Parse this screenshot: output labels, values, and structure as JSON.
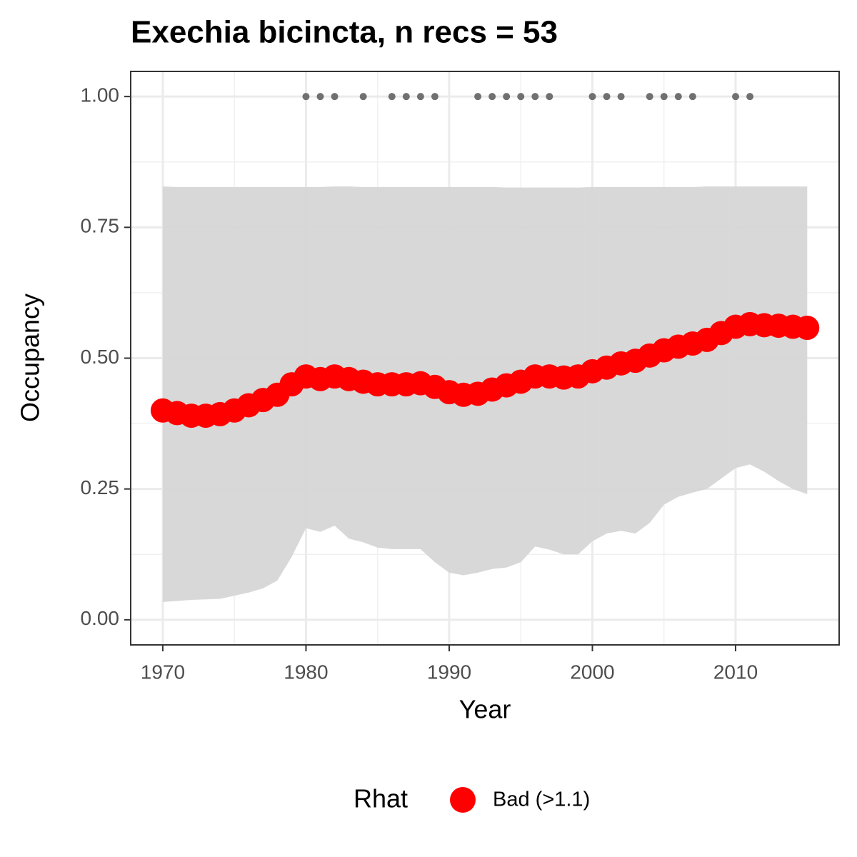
{
  "chart_data": {
    "type": "line",
    "title": "Exechia bicincta, n recs = 53",
    "x_label": "Year",
    "y_label": "Occupancy",
    "x": [
      1970,
      1971,
      1972,
      1973,
      1974,
      1975,
      1976,
      1977,
      1978,
      1979,
      1980,
      1981,
      1982,
      1983,
      1984,
      1985,
      1986,
      1987,
      1988,
      1989,
      1990,
      1991,
      1992,
      1993,
      1994,
      1995,
      1996,
      1997,
      1998,
      1999,
      2000,
      2001,
      2002,
      2003,
      2004,
      2005,
      2006,
      2007,
      2008,
      2009,
      2010,
      2011,
      2012,
      2013,
      2014,
      2015
    ],
    "series": [
      {
        "name": "Bad (>1.1)",
        "color": "#ff0000",
        "values": [
          0.4,
          0.395,
          0.39,
          0.39,
          0.393,
          0.4,
          0.41,
          0.42,
          0.43,
          0.45,
          0.465,
          0.46,
          0.465,
          0.46,
          0.455,
          0.45,
          0.45,
          0.45,
          0.452,
          0.445,
          0.435,
          0.43,
          0.432,
          0.44,
          0.448,
          0.455,
          0.465,
          0.465,
          0.463,
          0.465,
          0.475,
          0.482,
          0.49,
          0.495,
          0.505,
          0.515,
          0.522,
          0.528,
          0.535,
          0.548,
          0.56,
          0.565,
          0.563,
          0.562,
          0.56,
          0.558
        ]
      }
    ],
    "ribbon": {
      "color": "#d6d6d6",
      "upper": [
        0.828,
        0.827,
        0.827,
        0.827,
        0.827,
        0.827,
        0.827,
        0.827,
        0.827,
        0.827,
        0.827,
        0.827,
        0.828,
        0.828,
        0.827,
        0.827,
        0.827,
        0.827,
        0.827,
        0.827,
        0.827,
        0.827,
        0.827,
        0.827,
        0.826,
        0.826,
        0.826,
        0.826,
        0.826,
        0.826,
        0.827,
        0.827,
        0.827,
        0.827,
        0.827,
        0.827,
        0.827,
        0.827,
        0.828,
        0.828,
        0.828,
        0.828,
        0.828,
        0.828,
        0.828,
        0.828
      ],
      "lower": [
        0.034,
        0.036,
        0.038,
        0.039,
        0.04,
        0.046,
        0.052,
        0.06,
        0.075,
        0.12,
        0.175,
        0.168,
        0.18,
        0.155,
        0.148,
        0.138,
        0.135,
        0.135,
        0.135,
        0.11,
        0.09,
        0.085,
        0.09,
        0.097,
        0.1,
        0.11,
        0.14,
        0.134,
        0.125,
        0.125,
        0.15,
        0.165,
        0.17,
        0.165,
        0.185,
        0.22,
        0.235,
        0.243,
        0.25,
        0.27,
        0.29,
        0.297,
        0.283,
        0.265,
        0.25,
        0.24
      ]
    },
    "records": {
      "color": "#707070",
      "x": [
        1980,
        1981,
        1982,
        1984,
        1986,
        1987,
        1988,
        1989,
        1992,
        1993,
        1994,
        1995,
        1996,
        1997,
        2000,
        2001,
        2002,
        2004,
        2005,
        2006,
        2007,
        2010,
        2011
      ],
      "values": [
        1,
        1,
        1,
        1,
        1,
        1,
        1,
        1,
        1,
        1,
        1,
        1,
        1,
        1,
        1,
        1,
        1,
        1,
        1,
        1,
        1,
        1,
        1
      ]
    },
    "legend_title": "Rhat",
    "legend": "bottom",
    "xlim": [
      1967.76,
      2017.23
    ],
    "ylim": [
      -0.048,
      1.048
    ],
    "xticks": [
      1970,
      1980,
      1990,
      2000,
      2010
    ],
    "yticks": [
      {
        "value": 0,
        "label": "0.00"
      },
      {
        "value": 0.25,
        "label": "0.25"
      },
      {
        "value": 0.5,
        "label": "0.50"
      },
      {
        "value": 0.75,
        "label": "0.75"
      },
      {
        "value": 1,
        "label": "1.00"
      }
    ],
    "grid": true,
    "minor_grid": true
  }
}
